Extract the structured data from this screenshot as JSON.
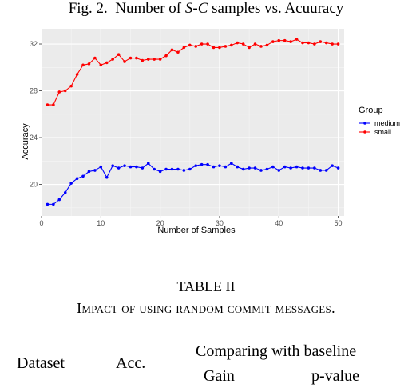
{
  "figure": {
    "caption_prefix": "Fig. 2.",
    "caption_before": "Number of",
    "caption_math": "S-C",
    "caption_after": "samples vs. Acuuracy"
  },
  "chart_data": {
    "type": "line",
    "xlabel": "Number of Samples",
    "ylabel": "Accuracy",
    "xlim": [
      0,
      51
    ],
    "ylim": [
      17.3,
      33.3
    ],
    "xticks": [
      0,
      10,
      20,
      30,
      40,
      50
    ],
    "yticks": [
      20,
      24,
      28,
      32
    ],
    "grid": true,
    "legend_title": "Group",
    "legend_position": "right",
    "x": [
      1,
      2,
      3,
      4,
      5,
      6,
      7,
      8,
      9,
      10,
      11,
      12,
      13,
      14,
      15,
      16,
      17,
      18,
      19,
      20,
      21,
      22,
      23,
      24,
      25,
      26,
      27,
      28,
      29,
      30,
      31,
      32,
      33,
      34,
      35,
      36,
      37,
      38,
      39,
      40,
      41,
      42,
      43,
      44,
      45,
      46,
      47,
      48,
      49,
      50
    ],
    "series": [
      {
        "name": "medium",
        "color": "#0000ff",
        "values": [
          18.3,
          18.3,
          18.7,
          19.3,
          20.1,
          20.5,
          20.7,
          21.1,
          21.2,
          21.5,
          20.6,
          21.6,
          21.4,
          21.6,
          21.5,
          21.5,
          21.4,
          21.8,
          21.3,
          21.1,
          21.3,
          21.3,
          21.3,
          21.2,
          21.3,
          21.6,
          21.7,
          21.7,
          21.5,
          21.6,
          21.5,
          21.8,
          21.5,
          21.3,
          21.4,
          21.4,
          21.2,
          21.3,
          21.5,
          21.2,
          21.5,
          21.4,
          21.5,
          21.4,
          21.4,
          21.4,
          21.2,
          21.2,
          21.6,
          21.4
        ]
      },
      {
        "name": "small",
        "color": "#ff0000",
        "values": [
          26.8,
          26.8,
          27.9,
          28.0,
          28.4,
          29.4,
          30.2,
          30.3,
          30.8,
          30.2,
          30.4,
          30.7,
          31.1,
          30.5,
          30.8,
          30.8,
          30.6,
          30.7,
          30.7,
          30.7,
          31.0,
          31.5,
          31.3,
          31.7,
          31.9,
          31.8,
          32.0,
          32.0,
          31.7,
          31.7,
          31.8,
          31.9,
          32.1,
          32.0,
          31.7,
          32.0,
          31.8,
          31.9,
          32.2,
          32.3,
          32.3,
          32.2,
          32.4,
          32.1,
          32.1,
          32.0,
          32.2,
          32.1,
          32.0,
          32.0
        ]
      }
    ]
  },
  "table": {
    "title": "TABLE II",
    "subtitle": "Impact of using random commit messages.",
    "col_dataset": "Dataset",
    "col_acc": "Acc.",
    "col_group": "Comparing with baseline",
    "col_gain": "Gain",
    "col_pvalue": "p-value"
  }
}
